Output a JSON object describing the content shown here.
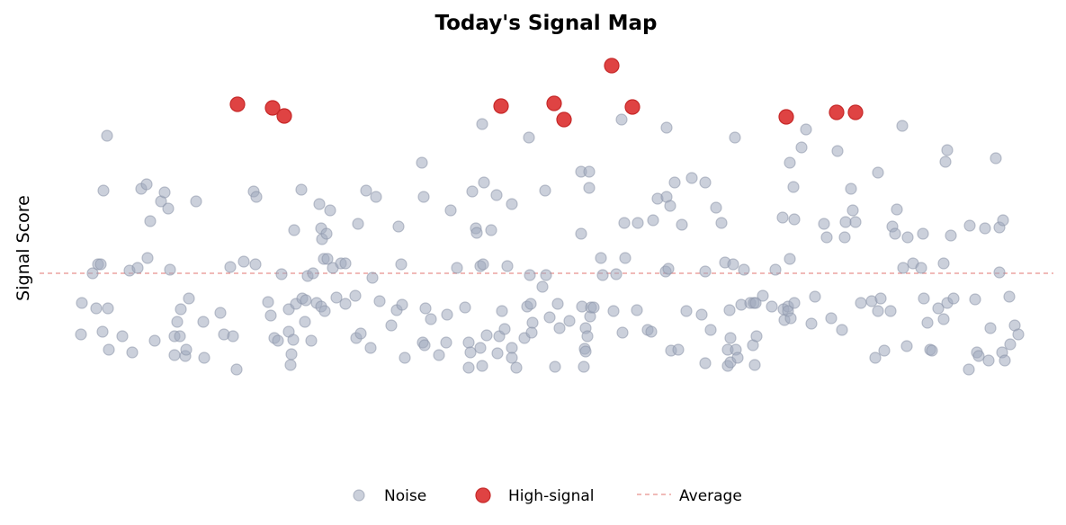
{
  "chart_data": {
    "type": "scatter",
    "title": "Today's Signal Map",
    "xlabel": "",
    "ylabel": "Signal Score",
    "x_ticks_shown": false,
    "y_ticks_shown": false,
    "grid": false,
    "legend_position": "bottom",
    "series": [
      {
        "name": "Noise",
        "color": "#a0aabe",
        "points": [
          [
            90,
            372
          ],
          [
            91,
            337
          ],
          [
            103,
            304
          ],
          [
            107,
            343
          ],
          [
            109,
            294
          ],
          [
            112,
            294
          ],
          [
            114,
            369
          ],
          [
            115,
            212
          ],
          [
            119,
            151
          ],
          [
            120,
            343
          ],
          [
            121,
            389
          ],
          [
            136,
            374
          ],
          [
            144,
            301
          ],
          [
            147,
            392
          ],
          [
            153,
            298
          ],
          [
            157,
            210
          ],
          [
            163,
            205
          ],
          [
            164,
            287
          ],
          [
            167,
            246
          ],
          [
            172,
            379
          ],
          [
            179,
            224
          ],
          [
            183,
            214
          ],
          [
            187,
            232
          ],
          [
            189,
            300
          ],
          [
            194,
            395
          ],
          [
            194,
            374
          ],
          [
            197,
            358
          ],
          [
            200,
            374
          ],
          [
            201,
            344
          ],
          [
            206,
            396
          ],
          [
            207,
            389
          ],
          [
            210,
            332
          ],
          [
            218,
            224
          ],
          [
            226,
            358
          ],
          [
            227,
            398
          ],
          [
            245,
            348
          ],
          [
            249,
            372
          ],
          [
            256,
            297
          ],
          [
            259,
            374
          ],
          [
            263,
            411
          ],
          [
            271,
            291
          ],
          [
            282,
            213
          ],
          [
            284,
            294
          ],
          [
            285,
            219
          ],
          [
            298,
            336
          ],
          [
            301,
            351
          ],
          [
            305,
            376
          ],
          [
            309,
            379
          ],
          [
            313,
            305
          ],
          [
            321,
            369
          ],
          [
            321,
            344
          ],
          [
            323,
            406
          ],
          [
            324,
            394
          ],
          [
            326,
            378
          ],
          [
            327,
            256
          ],
          [
            329,
            338
          ],
          [
            335,
            211
          ],
          [
            336,
            332
          ],
          [
            339,
            358
          ],
          [
            340,
            334
          ],
          [
            342,
            307
          ],
          [
            346,
            379
          ],
          [
            348,
            304
          ],
          [
            352,
            337
          ],
          [
            355,
            227
          ],
          [
            357,
            254
          ],
          [
            357,
            341
          ],
          [
            358,
            266
          ],
          [
            360,
            288
          ],
          [
            361,
            346
          ],
          [
            363,
            260
          ],
          [
            364,
            288
          ],
          [
            367,
            234
          ],
          [
            370,
            298
          ],
          [
            374,
            331
          ],
          [
            379,
            293
          ],
          [
            384,
            293
          ],
          [
            384,
            338
          ],
          [
            395,
            329
          ],
          [
            396,
            376
          ],
          [
            398,
            249
          ],
          [
            401,
            371
          ],
          [
            407,
            212
          ],
          [
            412,
            387
          ],
          [
            414,
            309
          ],
          [
            418,
            219
          ],
          [
            422,
            335
          ],
          [
            435,
            362
          ],
          [
            441,
            345
          ],
          [
            443,
            252
          ],
          [
            446,
            294
          ],
          [
            447,
            339
          ],
          [
            450,
            398
          ],
          [
            469,
            181
          ],
          [
            470,
            381
          ],
          [
            471,
            219
          ],
          [
            472,
            384
          ],
          [
            473,
            343
          ],
          [
            479,
            355
          ],
          [
            488,
            395
          ],
          [
            496,
            381
          ],
          [
            497,
            350
          ],
          [
            501,
            234
          ],
          [
            508,
            298
          ],
          [
            517,
            342
          ],
          [
            521,
            381
          ],
          [
            521,
            409
          ],
          [
            523,
            392
          ],
          [
            525,
            213
          ],
          [
            529,
            254
          ],
          [
            530,
            259
          ],
          [
            534,
            296
          ],
          [
            534,
            387
          ],
          [
            536,
            407
          ],
          [
            536,
            138
          ],
          [
            537,
            294
          ],
          [
            538,
            203
          ],
          [
            541,
            373
          ],
          [
            546,
            256
          ],
          [
            552,
            217
          ],
          [
            553,
            393
          ],
          [
            555,
            374
          ],
          [
            558,
            346
          ],
          [
            561,
            366
          ],
          [
            564,
            296
          ],
          [
            569,
            227
          ],
          [
            569,
            387
          ],
          [
            569,
            398
          ],
          [
            574,
            409
          ],
          [
            583,
            376
          ],
          [
            586,
            341
          ],
          [
            588,
            153
          ],
          [
            589,
            306
          ],
          [
            590,
            338
          ],
          [
            591,
            370
          ],
          [
            592,
            359
          ],
          [
            603,
            319
          ],
          [
            606,
            212
          ],
          [
            607,
            306
          ],
          [
            611,
            353
          ],
          [
            617,
            408
          ],
          [
            620,
            338
          ],
          [
            622,
            365
          ],
          [
            633,
            357
          ],
          [
            646,
            260
          ],
          [
            646,
            191
          ],
          [
            647,
            341
          ],
          [
            649,
            408
          ],
          [
            650,
            388
          ],
          [
            651,
            365
          ],
          [
            651,
            391
          ],
          [
            653,
            374
          ],
          [
            655,
            191
          ],
          [
            655,
            209
          ],
          [
            656,
            352
          ],
          [
            657,
            342
          ],
          [
            660,
            342
          ],
          [
            668,
            287
          ],
          [
            670,
            306
          ],
          [
            682,
            346
          ],
          [
            685,
            305
          ],
          [
            691,
            133
          ],
          [
            692,
            370
          ],
          [
            694,
            248
          ],
          [
            695,
            287
          ],
          [
            708,
            345
          ],
          [
            709,
            248
          ],
          [
            720,
            367
          ],
          [
            724,
            369
          ],
          [
            726,
            245
          ],
          [
            731,
            221
          ],
          [
            740,
            302
          ],
          [
            741,
            219
          ],
          [
            741,
            142
          ],
          [
            743,
            299
          ],
          [
            745,
            229
          ],
          [
            746,
            390
          ],
          [
            750,
            203
          ],
          [
            754,
            389
          ],
          [
            758,
            250
          ],
          [
            763,
            346
          ],
          [
            769,
            198
          ],
          [
            780,
            350
          ],
          [
            784,
            302
          ],
          [
            784,
            203
          ],
          [
            784,
            404
          ],
          [
            790,
            367
          ],
          [
            796,
            231
          ],
          [
            802,
            248
          ],
          [
            806,
            292
          ],
          [
            809,
            389
          ],
          [
            809,
            407
          ],
          [
            811,
            345
          ],
          [
            812,
            376
          ],
          [
            812,
            403
          ],
          [
            815,
            294
          ],
          [
            817,
            153
          ],
          [
            818,
            389
          ],
          [
            820,
            398
          ],
          [
            824,
            339
          ],
          [
            827,
            300
          ],
          [
            834,
            337
          ],
          [
            837,
            384
          ],
          [
            838,
            337
          ],
          [
            839,
            406
          ],
          [
            840,
            337
          ],
          [
            841,
            374
          ],
          [
            848,
            329
          ],
          [
            858,
            341
          ],
          [
            862,
            300
          ],
          [
            870,
            242
          ],
          [
            871,
            344
          ],
          [
            872,
            356
          ],
          [
            876,
            341
          ],
          [
            876,
            346
          ],
          [
            878,
            181
          ],
          [
            878,
            288
          ],
          [
            879,
            354
          ],
          [
            882,
            208
          ],
          [
            883,
            244
          ],
          [
            883,
            337
          ],
          [
            891,
            164
          ],
          [
            896,
            144
          ],
          [
            902,
            360
          ],
          [
            906,
            330
          ],
          [
            916,
            249
          ],
          [
            919,
            264
          ],
          [
            924,
            354
          ],
          [
            931,
            168
          ],
          [
            936,
            367
          ],
          [
            939,
            264
          ],
          [
            940,
            247
          ],
          [
            946,
            210
          ],
          [
            948,
            234
          ],
          [
            951,
            247
          ],
          [
            957,
            337
          ],
          [
            969,
            335
          ],
          [
            973,
            398
          ],
          [
            976,
            346
          ],
          [
            976,
            192
          ],
          [
            979,
            332
          ],
          [
            983,
            390
          ],
          [
            990,
            346
          ],
          [
            992,
            252
          ],
          [
            995,
            260
          ],
          [
            997,
            233
          ],
          [
            1003,
            140
          ],
          [
            1004,
            298
          ],
          [
            1008,
            385
          ],
          [
            1009,
            264
          ],
          [
            1015,
            293
          ],
          [
            1024,
            298
          ],
          [
            1026,
            260
          ],
          [
            1027,
            332
          ],
          [
            1031,
            359
          ],
          [
            1034,
            389
          ],
          [
            1036,
            390
          ],
          [
            1043,
            343
          ],
          [
            1049,
            355
          ],
          [
            1049,
            293
          ],
          [
            1051,
            180
          ],
          [
            1053,
            337
          ],
          [
            1053,
            167
          ],
          [
            1057,
            262
          ],
          [
            1060,
            332
          ],
          [
            1077,
            411
          ],
          [
            1078,
            251
          ],
          [
            1084,
            333
          ],
          [
            1086,
            392
          ],
          [
            1088,
            396
          ],
          [
            1095,
            254
          ],
          [
            1099,
            401
          ],
          [
            1101,
            365
          ],
          [
            1107,
            176
          ],
          [
            1111,
            303
          ],
          [
            1111,
            253
          ],
          [
            1114,
            392
          ],
          [
            1115,
            245
          ],
          [
            1117,
            401
          ],
          [
            1122,
            330
          ],
          [
            1123,
            383
          ],
          [
            1128,
            362
          ],
          [
            1132,
            372
          ]
        ]
      },
      {
        "name": "High-signal",
        "color": "#dc2f2f",
        "points": [
          [
            264,
            116
          ],
          [
            303,
            120
          ],
          [
            316,
            129
          ],
          [
            557,
            118
          ],
          [
            616,
            115
          ],
          [
            627,
            133
          ],
          [
            680,
            73
          ],
          [
            703,
            119
          ],
          [
            874,
            130
          ],
          [
            930,
            125
          ],
          [
            951,
            125
          ]
        ]
      }
    ],
    "reference_line": {
      "name": "Average",
      "color": "#e8908e",
      "y": 304,
      "style": "dashed"
    },
    "legend": [
      "Noise",
      "High-signal",
      "Average"
    ]
  }
}
